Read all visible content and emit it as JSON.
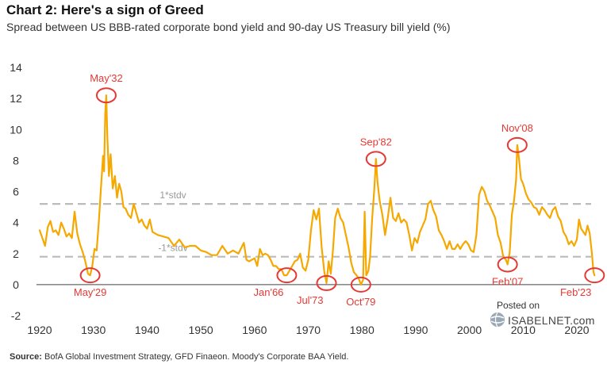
{
  "chart_data": {
    "type": "line",
    "title": "Chart 2: Here's a sign of Greed",
    "subtitle": "Spread between US BBB-rated corporate bond yield and 90-day US Treasury bill yield (%)",
    "xlabel": "",
    "ylabel": "",
    "xlim": [
      1920,
      2024
    ],
    "ylim": [
      -2,
      14
    ],
    "x_ticks": [
      "1920",
      "1930",
      "1940",
      "1950",
      "1960",
      "1970",
      "1980",
      "1990",
      "2000",
      "2010",
      "2020"
    ],
    "y_ticks": [
      "14",
      "12",
      "10",
      "8",
      "6",
      "4",
      "2",
      "0",
      "-2"
    ],
    "grid": false,
    "line_color": "#F5A800",
    "band_color": "#BBBBBB",
    "highlight_color": "#E53935",
    "reference_lines": [
      {
        "label": "1*stdv",
        "value": 5.2
      },
      {
        "label": "-1*stdv",
        "value": 1.8
      }
    ],
    "series": [
      {
        "points": [
          [
            1920.0,
            3.5
          ],
          [
            1920.5,
            3.0
          ],
          [
            1921.0,
            2.5
          ],
          [
            1921.5,
            3.7
          ],
          [
            1922.0,
            4.1
          ],
          [
            1922.5,
            3.4
          ],
          [
            1923.0,
            3.5
          ],
          [
            1923.5,
            3.2
          ],
          [
            1924.0,
            4.0
          ],
          [
            1924.5,
            3.6
          ],
          [
            1925.0,
            3.1
          ],
          [
            1925.5,
            3.3
          ],
          [
            1926.0,
            3.0
          ],
          [
            1926.5,
            4.7
          ],
          [
            1927.0,
            3.3
          ],
          [
            1927.5,
            2.6
          ],
          [
            1928.0,
            2.1
          ],
          [
            1928.5,
            1.5
          ],
          [
            1929.0,
            0.7
          ],
          [
            1929.4,
            0.6
          ],
          [
            1929.8,
            1.2
          ],
          [
            1930.2,
            2.3
          ],
          [
            1930.6,
            2.2
          ],
          [
            1931.0,
            4.0
          ],
          [
            1931.4,
            6.2
          ],
          [
            1931.8,
            8.3
          ],
          [
            1932.0,
            7.3
          ],
          [
            1932.2,
            11.0
          ],
          [
            1932.4,
            12.2
          ],
          [
            1932.6,
            9.5
          ],
          [
            1932.9,
            7.0
          ],
          [
            1933.2,
            8.4
          ],
          [
            1933.6,
            6.2
          ],
          [
            1934.0,
            7.0
          ],
          [
            1934.4,
            5.6
          ],
          [
            1934.8,
            6.5
          ],
          [
            1935.2,
            6.0
          ],
          [
            1935.6,
            5.0
          ],
          [
            1936.0,
            4.9
          ],
          [
            1936.5,
            4.5
          ],
          [
            1937.0,
            4.3
          ],
          [
            1937.5,
            5.2
          ],
          [
            1938.0,
            4.6
          ],
          [
            1938.5,
            4.0
          ],
          [
            1939.0,
            4.2
          ],
          [
            1939.5,
            3.8
          ],
          [
            1940.0,
            3.6
          ],
          [
            1940.5,
            4.2
          ],
          [
            1941.0,
            3.4
          ],
          [
            1942.0,
            3.2
          ],
          [
            1943.0,
            3.1
          ],
          [
            1944.0,
            3.0
          ],
          [
            1945.0,
            2.5
          ],
          [
            1946.0,
            2.9
          ],
          [
            1947.0,
            2.4
          ],
          [
            1948.0,
            2.5
          ],
          [
            1949.0,
            2.5
          ],
          [
            1950.0,
            2.2
          ],
          [
            1951.0,
            2.1
          ],
          [
            1952.0,
            1.9
          ],
          [
            1953.0,
            1.9
          ],
          [
            1954.0,
            2.5
          ],
          [
            1955.0,
            2.0
          ],
          [
            1956.0,
            2.2
          ],
          [
            1957.0,
            2.0
          ],
          [
            1958.0,
            2.7
          ],
          [
            1958.5,
            1.6
          ],
          [
            1959.0,
            1.5
          ],
          [
            1960.0,
            1.7
          ],
          [
            1960.5,
            1.2
          ],
          [
            1961.0,
            2.3
          ],
          [
            1961.5,
            1.9
          ],
          [
            1962.0,
            2.0
          ],
          [
            1962.5,
            1.9
          ],
          [
            1963.0,
            1.6
          ],
          [
            1963.5,
            1.2
          ],
          [
            1964.0,
            1.2
          ],
          [
            1964.5,
            1.0
          ],
          [
            1965.0,
            1.0
          ],
          [
            1965.5,
            0.6
          ],
          [
            1966.0,
            0.6
          ],
          [
            1966.5,
            0.9
          ],
          [
            1967.0,
            1.2
          ],
          [
            1967.5,
            1.5
          ],
          [
            1968.0,
            1.6
          ],
          [
            1968.5,
            2.0
          ],
          [
            1969.0,
            1.1
          ],
          [
            1969.5,
            0.9
          ],
          [
            1970.0,
            1.6
          ],
          [
            1970.5,
            3.5
          ],
          [
            1971.0,
            4.8
          ],
          [
            1971.5,
            4.2
          ],
          [
            1972.0,
            4.9
          ],
          [
            1972.5,
            2.4
          ],
          [
            1973.0,
            0.8
          ],
          [
            1973.4,
            0.1
          ],
          [
            1973.8,
            1.5
          ],
          [
            1974.2,
            0.7
          ],
          [
            1974.6,
            2.2
          ],
          [
            1975.0,
            4.3
          ],
          [
            1975.5,
            4.9
          ],
          [
            1976.0,
            4.3
          ],
          [
            1976.5,
            4.0
          ],
          [
            1977.0,
            3.2
          ],
          [
            1977.5,
            2.4
          ],
          [
            1978.0,
            1.4
          ],
          [
            1978.5,
            0.8
          ],
          [
            1979.0,
            0.6
          ],
          [
            1979.5,
            0.3
          ],
          [
            1979.8,
            0.0
          ],
          [
            1980.2,
            0.3
          ],
          [
            1980.5,
            4.7
          ],
          [
            1980.8,
            0.6
          ],
          [
            1981.2,
            0.9
          ],
          [
            1981.5,
            1.8
          ],
          [
            1981.9,
            4.3
          ],
          [
            1982.3,
            6.2
          ],
          [
            1982.6,
            8.1
          ],
          [
            1982.9,
            6.6
          ],
          [
            1983.3,
            5.4
          ],
          [
            1983.8,
            4.5
          ],
          [
            1984.3,
            3.2
          ],
          [
            1984.8,
            4.3
          ],
          [
            1985.3,
            5.6
          ],
          [
            1985.8,
            4.3
          ],
          [
            1986.3,
            4.1
          ],
          [
            1986.8,
            4.6
          ],
          [
            1987.3,
            4.0
          ],
          [
            1987.8,
            4.2
          ],
          [
            1988.3,
            4.0
          ],
          [
            1988.8,
            3.2
          ],
          [
            1989.3,
            2.2
          ],
          [
            1989.8,
            3.0
          ],
          [
            1990.3,
            2.7
          ],
          [
            1990.8,
            3.4
          ],
          [
            1991.3,
            3.8
          ],
          [
            1991.8,
            4.2
          ],
          [
            1992.3,
            5.2
          ],
          [
            1992.8,
            5.4
          ],
          [
            1993.3,
            4.8
          ],
          [
            1993.8,
            4.4
          ],
          [
            1994.3,
            3.5
          ],
          [
            1994.8,
            3.2
          ],
          [
            1995.3,
            2.8
          ],
          [
            1995.8,
            2.3
          ],
          [
            1996.3,
            2.8
          ],
          [
            1996.8,
            2.3
          ],
          [
            1997.3,
            2.3
          ],
          [
            1997.8,
            2.6
          ],
          [
            1998.3,
            2.3
          ],
          [
            1998.8,
            2.6
          ],
          [
            1999.3,
            2.8
          ],
          [
            1999.8,
            2.6
          ],
          [
            2000.3,
            2.2
          ],
          [
            2000.8,
            2.1
          ],
          [
            2001.3,
            3.2
          ],
          [
            2001.8,
            5.8
          ],
          [
            2002.3,
            6.3
          ],
          [
            2002.8,
            6.0
          ],
          [
            2003.3,
            5.4
          ],
          [
            2003.8,
            5.1
          ],
          [
            2004.3,
            4.7
          ],
          [
            2004.8,
            4.3
          ],
          [
            2005.3,
            3.2
          ],
          [
            2005.8,
            2.7
          ],
          [
            2006.3,
            1.8
          ],
          [
            2006.8,
            1.6
          ],
          [
            2007.1,
            1.3
          ],
          [
            2007.5,
            2.1
          ],
          [
            2007.9,
            4.5
          ],
          [
            2008.3,
            5.4
          ],
          [
            2008.7,
            6.8
          ],
          [
            2008.9,
            9.0
          ],
          [
            2009.2,
            8.2
          ],
          [
            2009.6,
            6.8
          ],
          [
            2010.0,
            6.5
          ],
          [
            2010.5,
            5.9
          ],
          [
            2011.0,
            5.5
          ],
          [
            2011.5,
            5.3
          ],
          [
            2012.0,
            5.0
          ],
          [
            2012.5,
            4.9
          ],
          [
            2013.0,
            4.5
          ],
          [
            2013.5,
            5.0
          ],
          [
            2014.0,
            4.8
          ],
          [
            2014.5,
            4.5
          ],
          [
            2015.0,
            4.3
          ],
          [
            2015.5,
            4.8
          ],
          [
            2016.0,
            5.0
          ],
          [
            2016.5,
            4.4
          ],
          [
            2017.0,
            4.1
          ],
          [
            2017.5,
            3.4
          ],
          [
            2018.0,
            3.1
          ],
          [
            2018.5,
            2.6
          ],
          [
            2019.0,
            2.8
          ],
          [
            2019.5,
            2.5
          ],
          [
            2020.0,
            2.9
          ],
          [
            2020.4,
            4.2
          ],
          [
            2020.8,
            3.6
          ],
          [
            2021.2,
            3.4
          ],
          [
            2021.6,
            3.2
          ],
          [
            2022.0,
            3.8
          ],
          [
            2022.4,
            3.3
          ],
          [
            2022.8,
            2.0
          ],
          [
            2023.1,
            0.8
          ],
          [
            2023.3,
            0.6
          ]
        ]
      }
    ],
    "annotations": [
      {
        "label": "May'32",
        "x": 1932.4,
        "y": 12.2,
        "label_side": "above"
      },
      {
        "label": "May'29",
        "x": 1929.4,
        "y": 0.6,
        "label_side": "below"
      },
      {
        "label": "Jan'66",
        "x": 1966.0,
        "y": 0.6,
        "label_side": "below-left"
      },
      {
        "label": "Jul'73",
        "x": 1973.4,
        "y": 0.1,
        "label_side": "below-left"
      },
      {
        "label": "Oct'79",
        "x": 1979.8,
        "y": 0.0,
        "label_side": "below"
      },
      {
        "label": "Sep'82",
        "x": 1982.6,
        "y": 8.1,
        "label_side": "above"
      },
      {
        "label": "Nov'08",
        "x": 2008.9,
        "y": 9.0,
        "label_side": "above"
      },
      {
        "label": "Feb'07",
        "x": 2007.1,
        "y": 1.3,
        "label_side": "below"
      },
      {
        "label": "Feb'23",
        "x": 2023.3,
        "y": 0.6,
        "label_side": "below-left"
      }
    ]
  },
  "source": {
    "label": "Source:",
    "text": "BofA Global Investment Strategy, GFD Finaeon.  Moody's Corporate BAA Yield."
  },
  "watermark": {
    "posted": "Posted on",
    "brand": "ISABELNET.com"
  }
}
